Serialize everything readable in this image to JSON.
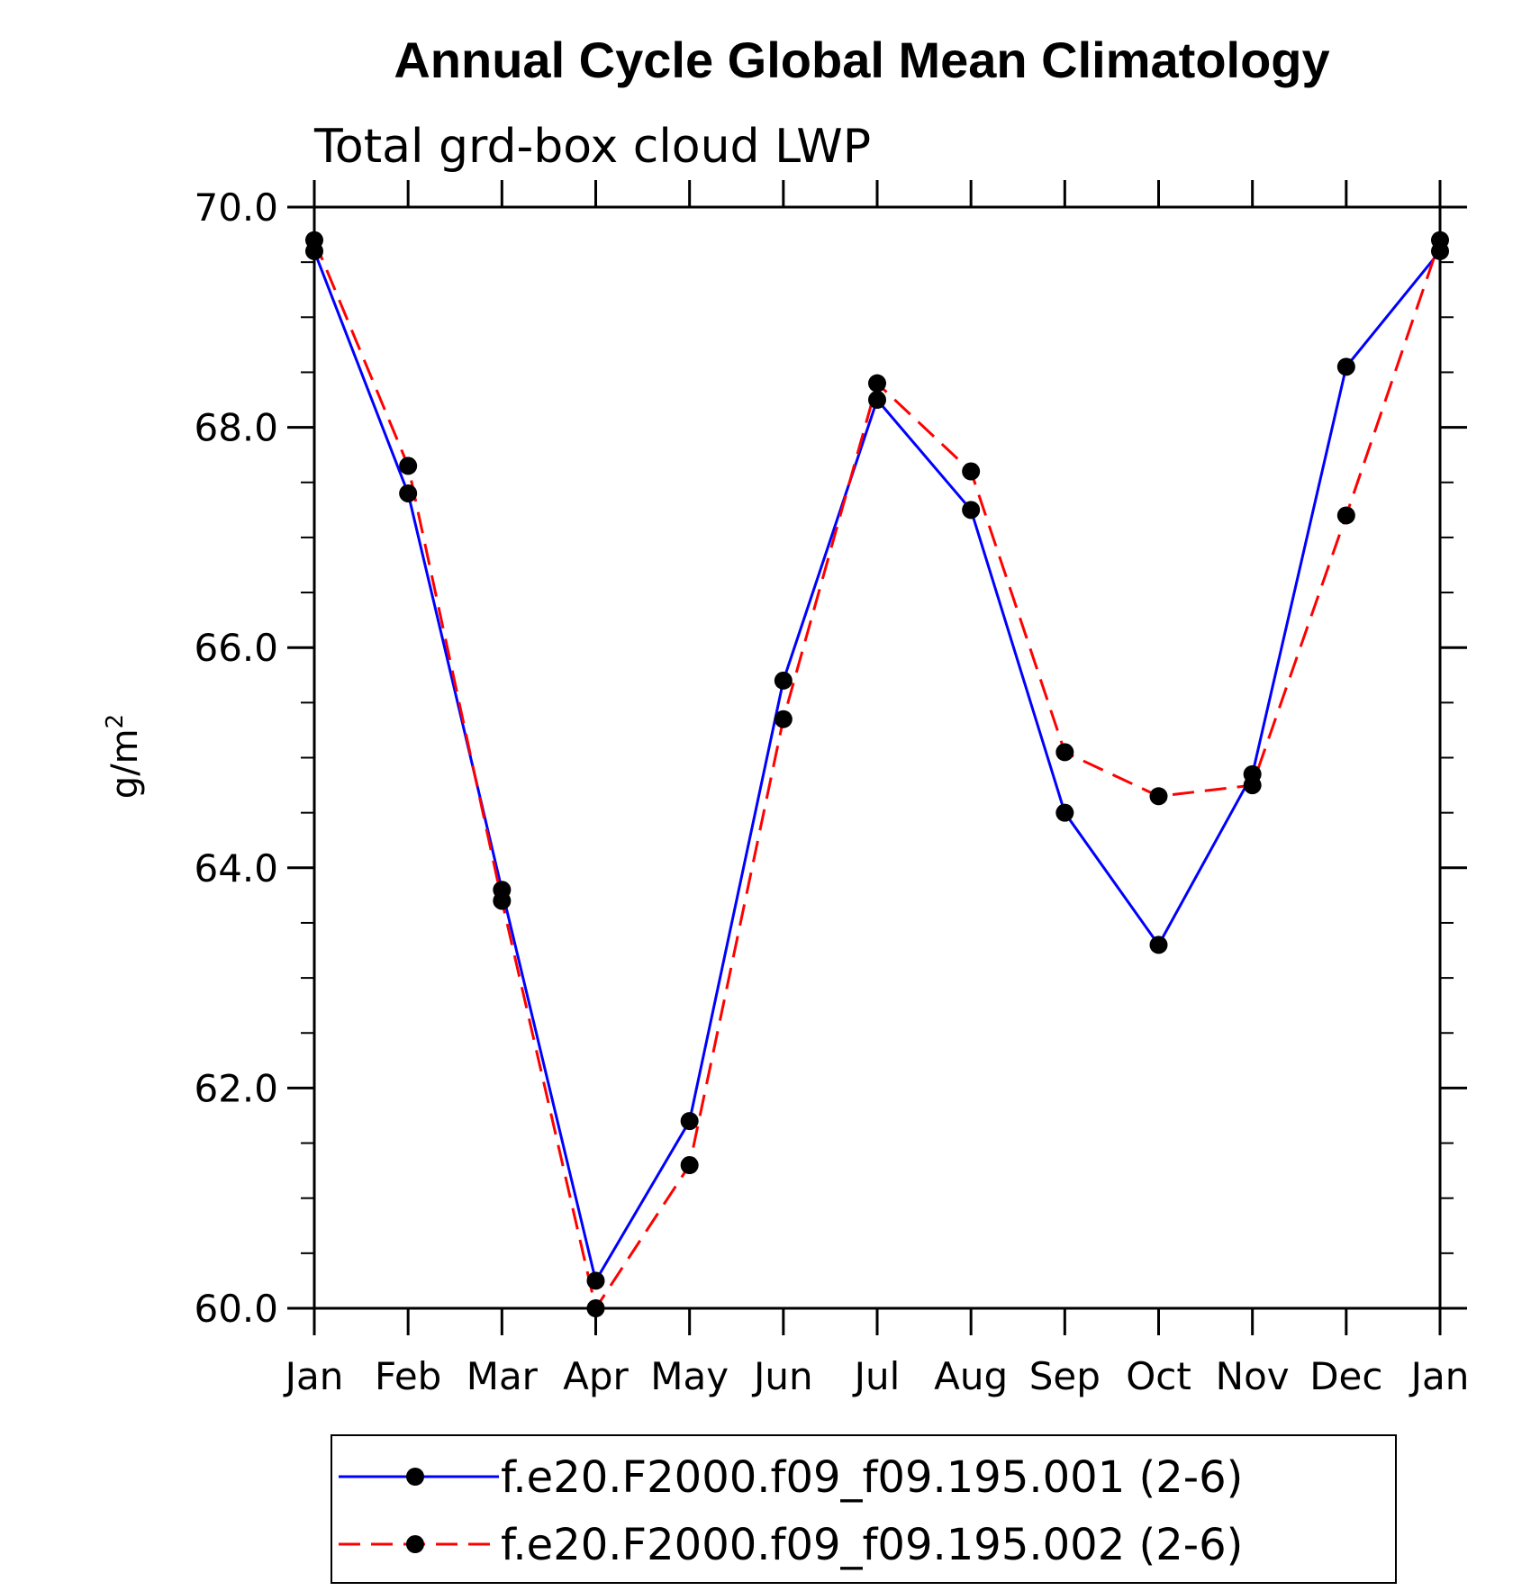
{
  "chart_data": {
    "type": "line",
    "title": "Annual Cycle Global Mean Climatology",
    "subtitle": "Total grd-box cloud LWP",
    "xlabel": "",
    "ylabel": "g/m",
    "ylabel_superscript": "2",
    "categories": [
      "Jan",
      "Feb",
      "Mar",
      "Apr",
      "May",
      "Jun",
      "Jul",
      "Aug",
      "Sep",
      "Oct",
      "Nov",
      "Dec",
      "Jan"
    ],
    "ylim": [
      60.0,
      70.0
    ],
    "yticks": [
      "60.0",
      "62.0",
      "64.0",
      "66.0",
      "68.0",
      "70.0"
    ],
    "grid": false,
    "legend_position": "bottom",
    "series": [
      {
        "name": "f.e20.F2000.f09_f09.195.001 (2-6)",
        "color": "#0000ff",
        "line_style": "solid",
        "marker": "filled-circle",
        "values": [
          69.6,
          67.4,
          63.8,
          60.25,
          61.7,
          65.7,
          68.25,
          67.25,
          64.5,
          63.3,
          64.85,
          68.55,
          69.6
        ]
      },
      {
        "name": "f.e20.F2000.f09_f09.195.002 (2-6)",
        "color": "#ff0000",
        "line_style": "dashed",
        "marker": "filled-circle",
        "values": [
          69.7,
          67.65,
          63.7,
          60.0,
          61.3,
          65.35,
          68.4,
          67.6,
          65.05,
          64.65,
          64.75,
          67.2,
          69.7
        ]
      }
    ]
  }
}
